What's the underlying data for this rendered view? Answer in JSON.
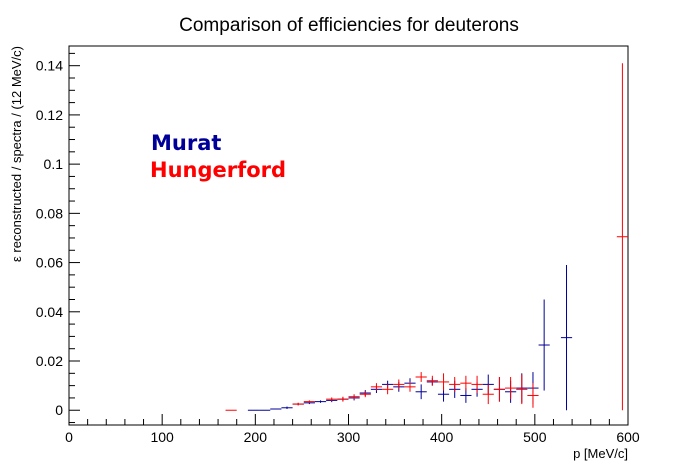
{
  "chart_data": {
    "type": "scatter",
    "title": "Comparison of efficiencies for deuterons",
    "xlabel": "p [MeV/c]",
    "ylabel": "ε reconstructed / spectra / (12 MeV/c)",
    "xlim": [
      0,
      600
    ],
    "ylim": [
      -0.006,
      0.148
    ],
    "x_ticks": [
      "0",
      "100",
      "200",
      "300",
      "400",
      "500",
      "600"
    ],
    "y_ticks": [
      "0",
      "0.02",
      "0.04",
      "0.06",
      "0.08",
      "0.1",
      "0.12",
      "0.14"
    ],
    "x_tick_values": [
      0,
      100,
      200,
      300,
      400,
      500,
      600
    ],
    "y_tick_values": [
      0,
      0.02,
      0.04,
      0.06,
      0.08,
      0.1,
      0.12,
      0.14
    ],
    "legend": [
      {
        "label": "Murat",
        "color": "#000099"
      },
      {
        "label": "Hungerford",
        "color": "#ff0000"
      }
    ],
    "legend_position": "upper-left",
    "grid": false,
    "series": [
      {
        "name": "Murat",
        "color": "#000099",
        "points": [
          {
            "x": 198,
            "y": 0.0,
            "ey": 0.0
          },
          {
            "x": 210,
            "y": 0.0,
            "ey": 0.0
          },
          {
            "x": 222,
            "y": 0.0005,
            "ey": 0.0
          },
          {
            "x": 234,
            "y": 0.001,
            "ey": 0.0005
          },
          {
            "x": 246,
            "y": 0.0025,
            "ey": 0.0005
          },
          {
            "x": 258,
            "y": 0.003,
            "ey": 0.0005
          },
          {
            "x": 270,
            "y": 0.0035,
            "ey": 0.0005
          },
          {
            "x": 282,
            "y": 0.004,
            "ey": 0.0007
          },
          {
            "x": 294,
            "y": 0.0045,
            "ey": 0.0008
          },
          {
            "x": 306,
            "y": 0.005,
            "ey": 0.001
          },
          {
            "x": 318,
            "y": 0.007,
            "ey": 0.0012
          },
          {
            "x": 330,
            "y": 0.0085,
            "ey": 0.0015
          },
          {
            "x": 342,
            "y": 0.0105,
            "ey": 0.0015
          },
          {
            "x": 354,
            "y": 0.0095,
            "ey": 0.002
          },
          {
            "x": 366,
            "y": 0.011,
            "ey": 0.002
          },
          {
            "x": 378,
            "y": 0.0075,
            "ey": 0.003
          },
          {
            "x": 390,
            "y": 0.0115,
            "ey": 0.0015
          },
          {
            "x": 402,
            "y": 0.0065,
            "ey": 0.003
          },
          {
            "x": 414,
            "y": 0.0085,
            "ey": 0.0035
          },
          {
            "x": 426,
            "y": 0.006,
            "ey": 0.003
          },
          {
            "x": 438,
            "y": 0.0085,
            "ey": 0.003
          },
          {
            "x": 450,
            "y": 0.0105,
            "ey": 0.004
          },
          {
            "x": 462,
            "y": 0.0085,
            "ey": 0.005
          },
          {
            "x": 474,
            "y": 0.0075,
            "ey": 0.0045
          },
          {
            "x": 486,
            "y": 0.009,
            "ey": 0.006
          },
          {
            "x": 498,
            "y": 0.009,
            "ey": 0.0065
          },
          {
            "x": 510,
            "y": 0.0265,
            "ey": 0.0185
          },
          {
            "x": 534,
            "y": 0.0295,
            "ey": 0.0295
          }
        ]
      },
      {
        "name": "Hungerford",
        "color": "#ff0000",
        "points": [
          {
            "x": 174,
            "y": 0.0,
            "ey": 0.0
          },
          {
            "x": 246,
            "y": 0.0025,
            "ey": 0.0005
          },
          {
            "x": 258,
            "y": 0.0035,
            "ey": 0.0005
          },
          {
            "x": 282,
            "y": 0.0045,
            "ey": 0.0007
          },
          {
            "x": 294,
            "y": 0.0045,
            "ey": 0.001
          },
          {
            "x": 306,
            "y": 0.0055,
            "ey": 0.001
          },
          {
            "x": 318,
            "y": 0.0065,
            "ey": 0.0012
          },
          {
            "x": 330,
            "y": 0.0095,
            "ey": 0.0015
          },
          {
            "x": 342,
            "y": 0.0085,
            "ey": 0.002
          },
          {
            "x": 354,
            "y": 0.0105,
            "ey": 0.002
          },
          {
            "x": 366,
            "y": 0.0095,
            "ey": 0.002
          },
          {
            "x": 378,
            "y": 0.0135,
            "ey": 0.002
          },
          {
            "x": 390,
            "y": 0.012,
            "ey": 0.002
          },
          {
            "x": 402,
            "y": 0.0115,
            "ey": 0.0035
          },
          {
            "x": 414,
            "y": 0.0105,
            "ey": 0.003
          },
          {
            "x": 426,
            "y": 0.011,
            "ey": 0.003
          },
          {
            "x": 438,
            "y": 0.0105,
            "ey": 0.0035
          },
          {
            "x": 450,
            "y": 0.0065,
            "ey": 0.004
          },
          {
            "x": 462,
            "y": 0.0085,
            "ey": 0.005
          },
          {
            "x": 474,
            "y": 0.009,
            "ey": 0.0045
          },
          {
            "x": 486,
            "y": 0.0085,
            "ey": 0.006
          },
          {
            "x": 498,
            "y": 0.006,
            "ey": 0.005
          },
          {
            "x": 594,
            "y": 0.0705,
            "ey": 0.0705
          }
        ]
      }
    ]
  }
}
